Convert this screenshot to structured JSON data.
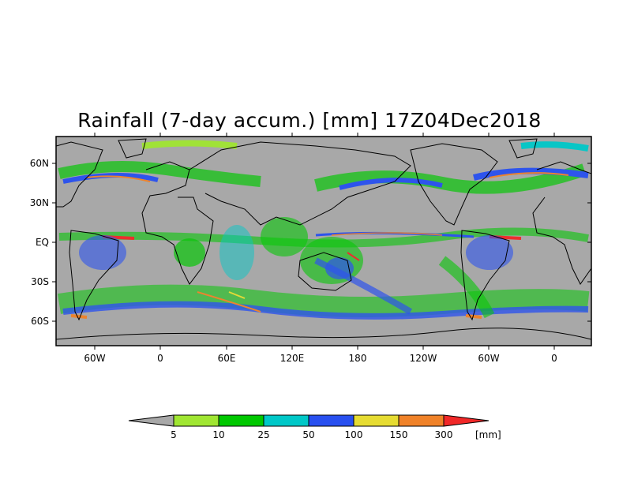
{
  "title": "Rainfall (7-day accum.) [mm] 17Z04Dec2018",
  "map": {
    "projection": "equirectangular",
    "background_color": "#a8a8a8",
    "lat_labels": [
      "60N",
      "30N",
      "EQ",
      "30S",
      "60S"
    ],
    "lon_labels": [
      "60W",
      "0",
      "60E",
      "120E",
      "180",
      "120W",
      "60W",
      "0"
    ]
  },
  "colorbar": {
    "unit": "[mm]",
    "tick_labels": [
      "5",
      "10",
      "25",
      "50",
      "100",
      "150",
      "300"
    ],
    "colors": {
      "below": "#a8a8a8",
      "bins": [
        "#a0e632",
        "#00c800",
        "#00c8c8",
        "#2850f0",
        "#e6dc32",
        "#f08228"
      ],
      "above": "#f02828"
    }
  }
}
